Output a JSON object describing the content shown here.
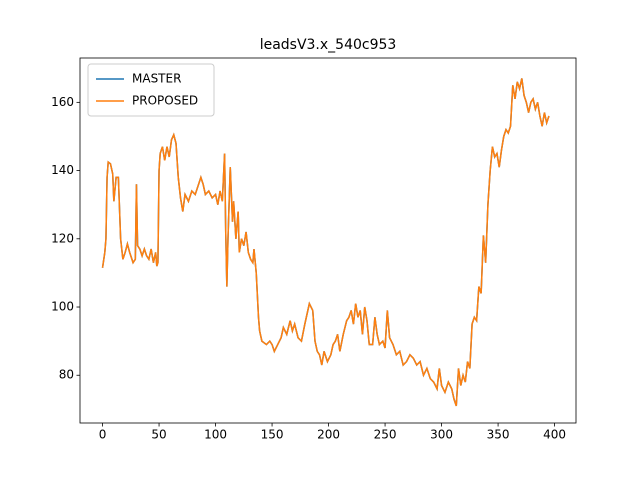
{
  "chart_data": {
    "type": "line",
    "title": "leadsV3.x_540c953",
    "x": [
      0,
      2,
      3,
      4,
      5,
      7,
      9,
      10,
      12,
      14,
      16,
      18,
      20,
      22,
      24,
      27,
      29,
      30,
      31,
      33,
      35,
      37,
      39,
      41,
      43,
      45,
      47,
      48,
      49,
      50,
      51,
      53,
      55,
      57,
      59,
      61,
      63,
      65,
      67,
      69,
      71,
      73,
      76,
      79,
      82,
      85,
      87,
      89,
      91,
      94,
      97,
      100,
      102,
      104,
      106,
      108,
      109,
      110,
      111,
      113,
      115,
      116,
      118,
      120,
      121,
      123,
      125,
      127,
      129,
      131,
      133,
      134,
      136,
      138,
      139,
      141,
      145,
      148,
      150,
      152,
      155,
      158,
      160,
      163,
      166,
      168,
      170,
      173,
      176,
      179,
      181,
      183,
      186,
      188,
      190,
      192,
      194,
      196,
      199,
      202,
      204,
      206,
      208,
      210,
      213,
      216,
      218,
      220,
      222,
      224,
      226,
      228,
      230,
      232,
      234,
      236,
      239,
      241,
      243,
      245,
      248,
      250,
      252,
      254,
      257,
      260,
      263,
      266,
      269,
      272,
      275,
      278,
      281,
      284,
      287,
      290,
      293,
      296,
      298,
      300,
      303,
      306,
      309,
      311,
      313,
      315,
      317,
      319,
      321,
      323,
      325,
      327,
      329,
      331,
      333,
      335,
      337,
      339,
      341,
      343,
      345,
      347,
      349,
      351,
      353,
      355,
      357,
      359,
      361,
      363,
      365,
      367,
      369,
      371,
      373,
      375,
      377,
      379,
      381,
      383,
      385,
      387,
      389,
      391,
      393,
      395
    ],
    "series": [
      {
        "name": "MASTER",
        "color": "#1f77b4",
        "values": [
          111.5,
          116,
          120,
          138,
          142.5,
          142,
          139,
          131,
          138,
          138,
          120,
          114,
          116,
          118.5,
          116,
          113,
          114,
          136,
          118,
          117,
          115,
          117,
          115,
          114,
          117,
          113,
          116,
          112,
          113,
          140,
          145,
          147,
          143,
          147,
          144,
          149,
          150.5,
          148,
          138,
          132,
          128,
          133,
          131,
          134,
          133,
          136,
          138,
          136,
          133,
          134,
          132,
          133,
          130,
          134,
          131,
          145,
          122,
          106,
          120,
          141,
          125,
          131,
          120,
          128,
          116,
          120,
          118,
          122,
          116,
          114,
          113,
          117,
          110,
          97,
          93,
          90,
          89,
          90,
          89,
          87,
          89,
          91,
          94,
          92,
          96,
          93,
          95,
          91,
          90,
          95,
          98,
          101,
          99,
          90,
          87,
          86,
          83,
          87,
          84,
          86,
          89,
          90,
          92,
          87,
          92,
          96,
          97,
          99,
          95,
          101,
          97,
          99,
          92,
          100,
          96,
          89,
          89,
          97,
          92,
          89,
          90,
          88,
          99,
          91,
          89,
          86,
          87,
          83,
          84,
          86,
          85,
          83,
          84,
          80,
          82,
          79,
          78,
          76,
          82,
          77,
          75,
          78,
          76,
          73,
          71,
          82,
          77,
          80,
          78,
          84,
          82,
          95,
          97,
          96,
          106,
          104,
          121,
          113,
          130,
          140,
          147,
          144,
          145,
          141,
          146,
          150,
          152,
          151,
          153,
          165,
          161,
          166,
          164,
          167,
          162,
          160,
          157,
          160,
          161,
          158,
          160,
          156,
          153,
          157,
          154,
          156
        ]
      },
      {
        "name": "PROPOSED",
        "color": "#ff7f0e",
        "values": [
          111.5,
          116,
          120,
          138,
          142.5,
          142,
          139,
          131,
          138,
          138,
          120,
          114,
          116,
          118.5,
          116,
          113,
          114,
          136,
          118,
          117,
          115,
          117,
          115,
          114,
          117,
          113,
          116,
          112,
          113,
          140,
          145,
          147,
          143,
          147,
          144,
          149,
          150.5,
          148,
          138,
          132,
          128,
          133,
          131,
          134,
          133,
          136,
          138,
          136,
          133,
          134,
          132,
          133,
          130,
          134,
          131,
          145,
          122,
          106,
          120,
          141,
          125,
          131,
          120,
          128,
          116,
          120,
          118,
          122,
          116,
          114,
          113,
          117,
          110,
          97,
          93,
          90,
          89,
          90,
          89,
          87,
          89,
          91,
          94,
          92,
          96,
          93,
          95,
          91,
          90,
          95,
          98,
          101,
          99,
          90,
          87,
          86,
          83,
          87,
          84,
          86,
          89,
          90,
          92,
          87,
          92,
          96,
          97,
          99,
          95,
          101,
          97,
          99,
          92,
          100,
          96,
          89,
          89,
          97,
          92,
          89,
          90,
          88,
          99,
          91,
          89,
          86,
          87,
          83,
          84,
          86,
          85,
          83,
          84,
          80,
          82,
          79,
          78,
          76,
          82,
          77,
          75,
          78,
          76,
          73,
          71,
          82,
          77,
          80,
          78,
          84,
          82,
          95,
          97,
          96,
          106,
          104,
          121,
          113,
          130,
          140,
          147,
          144,
          145,
          141,
          146,
          150,
          152,
          151,
          153,
          165,
          161,
          166,
          164,
          167,
          162,
          160,
          157,
          160,
          161,
          158,
          160,
          156,
          153,
          157,
          154,
          156
        ]
      }
    ],
    "xlim": [
      -19.95,
      418.95
    ],
    "xticks": [
      0,
      50,
      100,
      150,
      200,
      250,
      300,
      350,
      400
    ],
    "ylim": [
      66,
      173
    ],
    "yticks": [
      80,
      100,
      120,
      140,
      160
    ],
    "legend": "upper left"
  }
}
